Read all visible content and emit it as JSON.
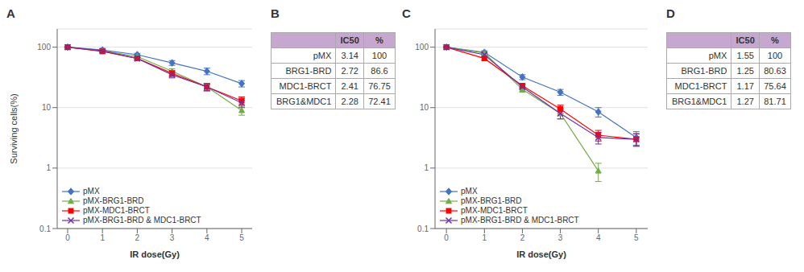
{
  "chart_data": [
    {
      "type": "line",
      "title": "A",
      "x_label": "IR dose(Gy)",
      "y_label": "Surviving cells(%)",
      "x": [
        0,
        1,
        2,
        3,
        4,
        5
      ],
      "xlim": [
        -0.3,
        5.3
      ],
      "xticks": [
        0,
        1,
        2,
        3,
        4,
        5
      ],
      "ylim": [
        0.1,
        200
      ],
      "yticks": [
        0.1,
        1,
        10,
        100
      ],
      "log": "y",
      "grid": true,
      "legend": "lower left",
      "series": [
        {
          "name": "pMX",
          "color": "#4472C4",
          "marker": "diamond",
          "values": [
            100,
            90,
            75,
            55,
            40,
            25
          ],
          "errors": [
            2,
            4,
            4,
            5,
            5,
            3
          ]
        },
        {
          "name": "pMX-BRG1-BRD",
          "color": "#70AD47",
          "marker": "triangle",
          "values": [
            100,
            87,
            70,
            40,
            22,
            9
          ],
          "errors": [
            2,
            4,
            3,
            4,
            3,
            1.5
          ]
        },
        {
          "name": "pMX-MDC1-BRCT",
          "color": "#FF0000",
          "marker": "square",
          "values": [
            100,
            85,
            65,
            37,
            22,
            13
          ],
          "errors": [
            2,
            4,
            3,
            4,
            3,
            2
          ]
        },
        {
          "name": "pMX-BRG1-BRD & MDC1-BRCT",
          "color": "#7030A0",
          "marker": "x",
          "values": [
            100,
            87,
            65,
            35,
            22,
            12
          ],
          "errors": [
            2,
            3,
            3,
            4,
            3,
            2
          ]
        }
      ]
    },
    {
      "type": "table",
      "title": "B",
      "color": "#C5A7D0",
      "columns": [
        null,
        "IC50",
        "%"
      ],
      "rows": [
        [
          "pMX",
          "3.14",
          "100"
        ],
        [
          "BRG1-BRD",
          "2.72",
          "86.6"
        ],
        [
          "MDC1-BRCT",
          "2.41",
          "76.75"
        ],
        [
          "BRG1&MDC1",
          "2.28",
          "72.41"
        ]
      ]
    },
    {
      "type": "line",
      "title": "C",
      "x_label": "IR dose(Gy)",
      "x": [
        0,
        1,
        2,
        3,
        4,
        5
      ],
      "xlim": [
        -0.3,
        5.3
      ],
      "xticks": [
        0,
        1,
        2,
        3,
        4,
        5
      ],
      "ylim": [
        0.1,
        200
      ],
      "yticks": [
        0.1,
        1,
        10,
        100
      ],
      "log": "y",
      "grid": true,
      "legend": "lower left",
      "series": [
        {
          "name": "pMX",
          "color": "#4472C4",
          "marker": "diamond",
          "values": [
            100,
            82,
            32,
            18,
            8.5,
            3.2
          ],
          "errors": [
            2,
            5,
            3,
            2,
            1.5,
            0.8
          ]
        },
        {
          "name": "pMX-BRG1-BRD",
          "color": "#70AD47",
          "marker": "triangle",
          "values": [
            100,
            80,
            20,
            8,
            0.9,
            null
          ],
          "errors": [
            2,
            5,
            2,
            1.5,
            0.3,
            null
          ]
        },
        {
          "name": "pMX-MDC1-BRCT",
          "color": "#FF0000",
          "marker": "square",
          "values": [
            100,
            65,
            23,
            9.5,
            3.5,
            3.0
          ],
          "errors": [
            2,
            4,
            2,
            1.5,
            0.7,
            0.7
          ]
        },
        {
          "name": "pMX-BRG1-BRD & MDC1-BRCT",
          "color": "#7030A0",
          "marker": "x",
          "values": [
            100,
            75,
            22,
            8,
            3.2,
            3.0
          ],
          "errors": [
            2,
            4,
            2,
            1.5,
            0.7,
            0.7
          ]
        }
      ]
    },
    {
      "type": "table",
      "title": "D",
      "color": "#C5A7D0",
      "columns": [
        null,
        "IC50",
        "%"
      ],
      "rows": [
        [
          "pMX",
          "1.55",
          "100"
        ],
        [
          "BRG1-BRD",
          "1.25",
          "80.63"
        ],
        [
          "MDC1-BRCT",
          "1.17",
          "75.64"
        ],
        [
          "BRG1&MDC1",
          "1.27",
          "81.71"
        ]
      ]
    }
  ]
}
